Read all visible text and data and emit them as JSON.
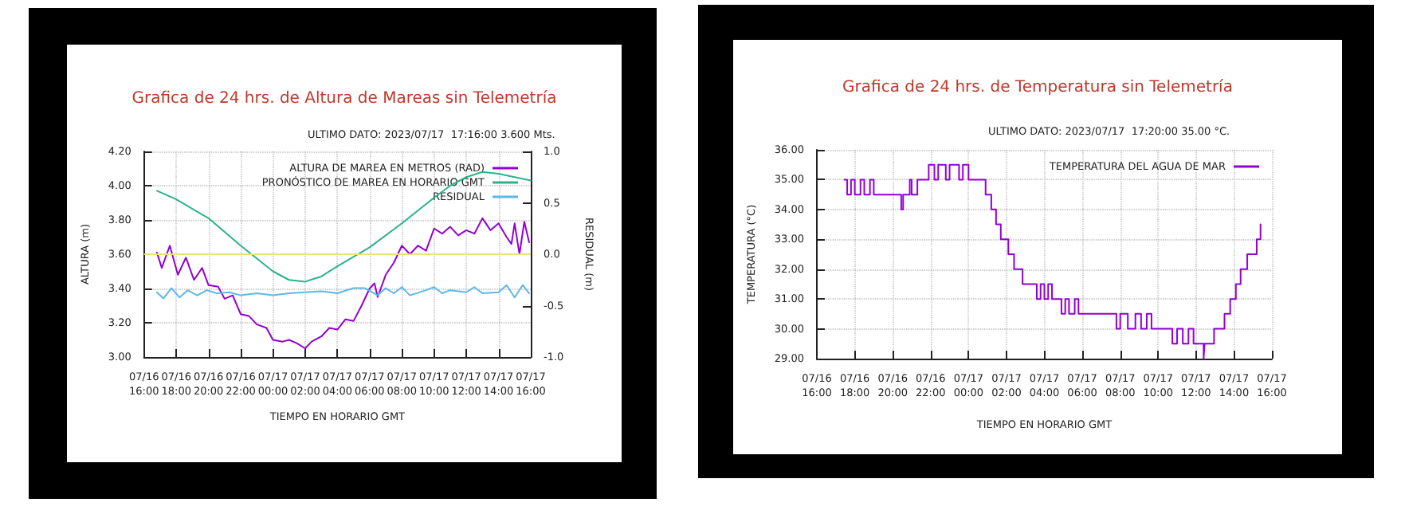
{
  "chart_data": [
    {
      "type": "line",
      "title": "Grafica de 24 hrs. de Altura de Mareas sin Telemetría",
      "annotations": [
        "ULTIMO DATO: 2023/07/17  17:16:00 3.600 Mts."
      ],
      "xlabel": "TIEMPO EN HORARIO GMT",
      "ylabel": "ALTURA (m)",
      "y2label": "RESIDUAL (m)",
      "xlim": [
        "2023-07-16T16:00",
        "2023-07-17T16:00"
      ],
      "xticks": [
        {
          "value": "2023-07-16T16:00",
          "label": "07/16\n16:00"
        },
        {
          "value": "2023-07-16T18:00",
          "label": "07/16\n18:00"
        },
        {
          "value": "2023-07-16T20:00",
          "label": "07/16\n20:00"
        },
        {
          "value": "2023-07-16T22:00",
          "label": "07/16\n22:00"
        },
        {
          "value": "2023-07-17T00:00",
          "label": "07/17\n00:00"
        },
        {
          "value": "2023-07-17T02:00",
          "label": "07/17\n02:00"
        },
        {
          "value": "2023-07-17T04:00",
          "label": "07/17\n04:00"
        },
        {
          "value": "2023-07-17T06:00",
          "label": "07/17\n06:00"
        },
        {
          "value": "2023-07-17T08:00",
          "label": "07/17\n08:00"
        },
        {
          "value": "2023-07-17T10:00",
          "label": "07/17\n10:00"
        },
        {
          "value": "2023-07-17T12:00",
          "label": "07/17\n12:00"
        },
        {
          "value": "2023-07-17T14:00",
          "label": "07/17\n14:00"
        },
        {
          "value": "2023-07-17T16:00",
          "label": "07/17\n16:00"
        }
      ],
      "ylim": [
        3.0,
        4.2
      ],
      "yticks": [
        {
          "value": 3.0,
          "label": "3.00"
        },
        {
          "value": 3.2,
          "label": "3.20"
        },
        {
          "value": 3.4,
          "label": "3.40"
        },
        {
          "value": 3.6,
          "label": "3.60"
        },
        {
          "value": 3.8,
          "label": "3.80"
        },
        {
          "value": 4.0,
          "label": "4.00"
        },
        {
          "value": 4.2,
          "label": "4.20"
        }
      ],
      "y2lim": [
        -1.0,
        1.0
      ],
      "y2ticks": [
        {
          "value": -1.0,
          "label": "-1.0"
        },
        {
          "value": -0.5,
          "label": "-0.5"
        },
        {
          "value": 0,
          "label": "0.0"
        },
        {
          "value": 0.5,
          "label": "0.5"
        },
        {
          "value": 1.0,
          "label": "1.0"
        }
      ],
      "grid": true,
      "legend": "top right",
      "marker": "none",
      "line_style": "solid",
      "ref_lines": [
        {
          "axis": "y",
          "value": 3.6,
          "color": "#e8e27a"
        }
      ],
      "series": [
        {
          "name": "ALTURA DE MAREA EN METROS (RAD)",
          "color": "#9400d3",
          "x": [
            "2023-07-16T16:48",
            "2023-07-16T17:06",
            "2023-07-16T17:36",
            "2023-07-16T18:06",
            "2023-07-16T18:36",
            "2023-07-16T19:06",
            "2023-07-16T19:36",
            "2023-07-16T20:00",
            "2023-07-16T20:36",
            "2023-07-16T21:00",
            "2023-07-16T21:30",
            "2023-07-16T22:00",
            "2023-07-16T22:30",
            "2023-07-16T23:00",
            "2023-07-16T23:36",
            "2023-07-17T00:00",
            "2023-07-17T00:36",
            "2023-07-17T01:00",
            "2023-07-17T01:30",
            "2023-07-17T02:00",
            "2023-07-17T02:24",
            "2023-07-17T03:00",
            "2023-07-17T03:30",
            "2023-07-17T04:00",
            "2023-07-17T04:30",
            "2023-07-17T05:00",
            "2023-07-17T05:30",
            "2023-07-17T06:00",
            "2023-07-17T06:18",
            "2023-07-17T06:30",
            "2023-07-17T07:00",
            "2023-07-17T07:30",
            "2023-07-17T08:00",
            "2023-07-17T08:30",
            "2023-07-17T09:00",
            "2023-07-17T09:30",
            "2023-07-17T10:00",
            "2023-07-17T10:30",
            "2023-07-17T11:00",
            "2023-07-17T11:30",
            "2023-07-17T12:00",
            "2023-07-17T12:30",
            "2023-07-17T13:00",
            "2023-07-17T13:30",
            "2023-07-17T14:00",
            "2023-07-17T14:30",
            "2023-07-17T14:48",
            "2023-07-17T15:00",
            "2023-07-17T15:18",
            "2023-07-17T15:36",
            "2023-07-17T15:54"
          ],
          "values": [
            3.61,
            3.52,
            3.65,
            3.48,
            3.58,
            3.45,
            3.52,
            3.42,
            3.41,
            3.34,
            3.36,
            3.25,
            3.24,
            3.19,
            3.17,
            3.1,
            3.09,
            3.1,
            3.08,
            3.05,
            3.09,
            3.12,
            3.17,
            3.16,
            3.22,
            3.21,
            3.3,
            3.4,
            3.43,
            3.35,
            3.48,
            3.55,
            3.65,
            3.6,
            3.65,
            3.62,
            3.75,
            3.72,
            3.76,
            3.71,
            3.74,
            3.72,
            3.81,
            3.74,
            3.78,
            3.7,
            3.66,
            3.78,
            3.6,
            3.79,
            3.67
          ]
        },
        {
          "name": "PRONÓSTICO DE MAREA EN HORARIO GMT",
          "color": "#2bb38a",
          "x": [
            "2023-07-16T16:48",
            "2023-07-16T18:00",
            "2023-07-16T20:00",
            "2023-07-16T22:00",
            "2023-07-17T00:00",
            "2023-07-17T01:00",
            "2023-07-17T02:00",
            "2023-07-17T03:00",
            "2023-07-17T04:00",
            "2023-07-17T06:00",
            "2023-07-17T08:00",
            "2023-07-17T10:00",
            "2023-07-17T11:00",
            "2023-07-17T12:00",
            "2023-07-17T13:00",
            "2023-07-17T14:00",
            "2023-07-17T15:00",
            "2023-07-17T16:00"
          ],
          "values": [
            3.97,
            3.92,
            3.81,
            3.65,
            3.5,
            3.45,
            3.44,
            3.47,
            3.53,
            3.64,
            3.78,
            3.93,
            4.0,
            4.05,
            4.08,
            4.07,
            4.05,
            4.03
          ]
        },
        {
          "name": "RESIDUAL",
          "color": "#5bb8e8",
          "axis": "y2",
          "x": [
            "2023-07-16T16:48",
            "2023-07-16T17:12",
            "2023-07-16T17:42",
            "2023-07-16T18:12",
            "2023-07-16T18:42",
            "2023-07-16T19:18",
            "2023-07-16T19:54",
            "2023-07-16T20:30",
            "2023-07-16T21:18",
            "2023-07-16T22:00",
            "2023-07-16T23:00",
            "2023-07-17T00:00",
            "2023-07-17T01:00",
            "2023-07-17T02:00",
            "2023-07-17T03:00",
            "2023-07-17T04:00",
            "2023-07-17T05:00",
            "2023-07-17T05:42",
            "2023-07-17T06:30",
            "2023-07-17T07:00",
            "2023-07-17T07:30",
            "2023-07-17T08:00",
            "2023-07-17T08:30",
            "2023-07-17T09:30",
            "2023-07-17T10:00",
            "2023-07-17T10:30",
            "2023-07-17T11:00",
            "2023-07-17T12:00",
            "2023-07-17T12:30",
            "2023-07-17T13:00",
            "2023-07-17T14:00",
            "2023-07-17T14:30",
            "2023-07-17T15:00",
            "2023-07-17T15:30",
            "2023-07-17T15:54"
          ],
          "values": [
            -0.37,
            -0.43,
            -0.33,
            -0.42,
            -0.35,
            -0.4,
            -0.35,
            -0.38,
            -0.37,
            -0.4,
            -0.38,
            -0.4,
            -0.38,
            -0.37,
            -0.36,
            -0.38,
            -0.33,
            -0.33,
            -0.4,
            -0.33,
            -0.38,
            -0.32,
            -0.4,
            -0.35,
            -0.32,
            -0.38,
            -0.35,
            -0.37,
            -0.32,
            -0.38,
            -0.37,
            -0.3,
            -0.42,
            -0.3,
            -0.38
          ]
        }
      ]
    },
    {
      "type": "step",
      "title": "Grafica de 24 hrs. de Temperatura sin Telemetría",
      "annotations": [
        "ULTIMO DATO: 2023/07/17  17:20:00 35.00 °C."
      ],
      "xlabel": "TIEMPO EN HORARIO GMT",
      "ylabel": "TEMPERATURA (°C)",
      "xlim": [
        "2023-07-16T16:00",
        "2023-07-17T16:00"
      ],
      "xticks": [
        {
          "value": "2023-07-16T16:00",
          "label": "07/16\n16:00"
        },
        {
          "value": "2023-07-16T18:00",
          "label": "07/16\n18:00"
        },
        {
          "value": "2023-07-16T20:00",
          "label": "07/16\n20:00"
        },
        {
          "value": "2023-07-16T22:00",
          "label": "07/16\n22:00"
        },
        {
          "value": "2023-07-17T00:00",
          "label": "07/17\n00:00"
        },
        {
          "value": "2023-07-17T02:00",
          "label": "07/17\n02:00"
        },
        {
          "value": "2023-07-17T04:00",
          "label": "07/17\n04:00"
        },
        {
          "value": "2023-07-17T06:00",
          "label": "07/17\n06:00"
        },
        {
          "value": "2023-07-17T08:00",
          "label": "07/17\n08:00"
        },
        {
          "value": "2023-07-17T10:00",
          "label": "07/17\n10:00"
        },
        {
          "value": "2023-07-17T12:00",
          "label": "07/17\n12:00"
        },
        {
          "value": "2023-07-17T14:00",
          "label": "07/17\n14:00"
        },
        {
          "value": "2023-07-17T16:00",
          "label": "07/17\n16:00"
        }
      ],
      "ylim": [
        29,
        36
      ],
      "yticks": [
        {
          "value": 29,
          "label": "29.00"
        },
        {
          "value": 30,
          "label": "30.00"
        },
        {
          "value": 31,
          "label": "31.00"
        },
        {
          "value": 32,
          "label": "32.00"
        },
        {
          "value": 33,
          "label": "33.00"
        },
        {
          "value": 34,
          "label": "34.00"
        },
        {
          "value": 35,
          "label": "35.00"
        },
        {
          "value": 36,
          "label": "36.00"
        }
      ],
      "grid": true,
      "legend": "top right",
      "marker": "none",
      "line_style": "solid",
      "series": [
        {
          "name": "TEMPERATURA DEL AGUA DE MAR",
          "color": "#9400d3",
          "x": [
            "2023-07-16T17:27",
            "2023-07-16T17:36",
            "2023-07-16T17:48",
            "2023-07-16T18:00",
            "2023-07-16T18:18",
            "2023-07-16T18:30",
            "2023-07-16T18:48",
            "2023-07-16T19:00",
            "2023-07-16T20:27",
            "2023-07-16T20:33",
            "2023-07-16T20:54",
            "2023-07-16T21:00",
            "2023-07-16T21:18",
            "2023-07-16T21:54",
            "2023-07-16T22:12",
            "2023-07-16T22:24",
            "2023-07-16T22:48",
            "2023-07-16T23:00",
            "2023-07-16T23:30",
            "2023-07-16T23:42",
            "2023-07-17T00:00",
            "2023-07-17T00:54",
            "2023-07-17T01:12",
            "2023-07-17T01:27",
            "2023-07-17T01:42",
            "2023-07-17T02:06",
            "2023-07-17T02:24",
            "2023-07-17T02:51",
            "2023-07-17T03:36",
            "2023-07-17T03:48",
            "2023-07-17T04:00",
            "2023-07-17T04:12",
            "2023-07-17T04:24",
            "2023-07-17T04:54",
            "2023-07-17T05:06",
            "2023-07-17T05:18",
            "2023-07-17T05:36",
            "2023-07-17T05:48",
            "2023-07-17T07:48",
            "2023-07-17T08:00",
            "2023-07-17T08:24",
            "2023-07-17T08:48",
            "2023-07-17T09:06",
            "2023-07-17T09:24",
            "2023-07-17T09:39",
            "2023-07-17T10:45",
            "2023-07-17T11:00",
            "2023-07-17T11:18",
            "2023-07-17T11:36",
            "2023-07-17T11:52",
            "2023-07-17T12:24",
            "2023-07-17T12:27",
            "2023-07-17T12:57",
            "2023-07-17T13:30",
            "2023-07-17T13:48",
            "2023-07-17T14:06",
            "2023-07-17T14:21",
            "2023-07-17T14:42",
            "2023-07-17T15:12",
            "2023-07-17T15:24"
          ],
          "values": [
            35.0,
            34.5,
            35.0,
            34.5,
            35.0,
            34.5,
            35.0,
            34.5,
            34.0,
            34.5,
            35.0,
            34.5,
            35.0,
            35.5,
            35.0,
            35.5,
            35.0,
            35.5,
            35.0,
            35.5,
            35.0,
            34.5,
            34.0,
            33.5,
            33.0,
            32.5,
            32.0,
            31.5,
            31.0,
            31.5,
            31.0,
            31.5,
            31.0,
            30.5,
            31.0,
            30.5,
            31.0,
            30.5,
            30.0,
            30.5,
            30.0,
            30.5,
            30.0,
            30.5,
            30.0,
            29.5,
            30.0,
            29.5,
            30.0,
            29.5,
            29.0,
            29.5,
            30.0,
            30.5,
            31.0,
            31.5,
            32.0,
            32.5,
            33.0,
            33.5
          ]
        }
      ]
    }
  ]
}
